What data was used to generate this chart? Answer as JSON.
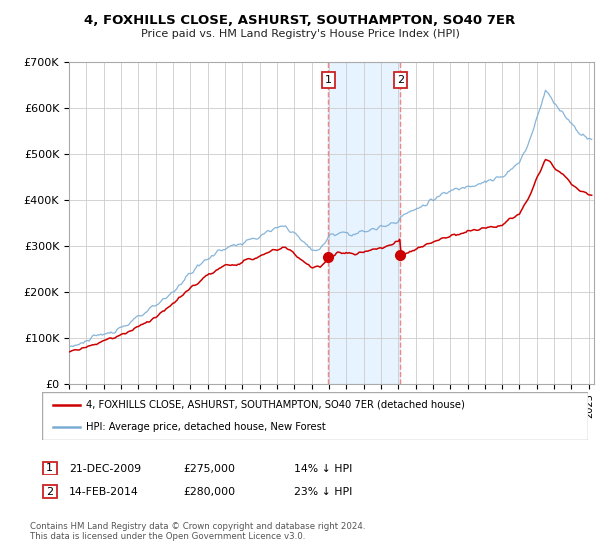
{
  "title": "4, FOXHILLS CLOSE, ASHURST, SOUTHAMPTON, SO40 7ER",
  "subtitle": "Price paid vs. HM Land Registry's House Price Index (HPI)",
  "ylim": [
    0,
    700000
  ],
  "xlim_start": 1995.0,
  "xlim_end": 2025.3,
  "hpi_color": "#7aadd4",
  "price_color": "#cc0000",
  "shade_color": "#ddeeff",
  "vline_color": "#ee8888",
  "transaction1_date": 2009.97,
  "transaction1_price": 275000,
  "transaction2_date": 2014.12,
  "transaction2_price": 280000,
  "legend_line1": "4, FOXHILLS CLOSE, ASHURST, SOUTHAMPTON, SO40 7ER (detached house)",
  "legend_line2": "HPI: Average price, detached house, New Forest",
  "row1_date": "21-DEC-2009",
  "row1_price": "£275,000",
  "row1_delta": "14% ↓ HPI",
  "row2_date": "14-FEB-2014",
  "row2_price": "£280,000",
  "row2_delta": "23% ↓ HPI",
  "footnote": "Contains HM Land Registry data © Crown copyright and database right 2024.\nThis data is licensed under the Open Government Licence v3.0.",
  "background_color": "#ffffff",
  "grid_color": "#cccccc"
}
